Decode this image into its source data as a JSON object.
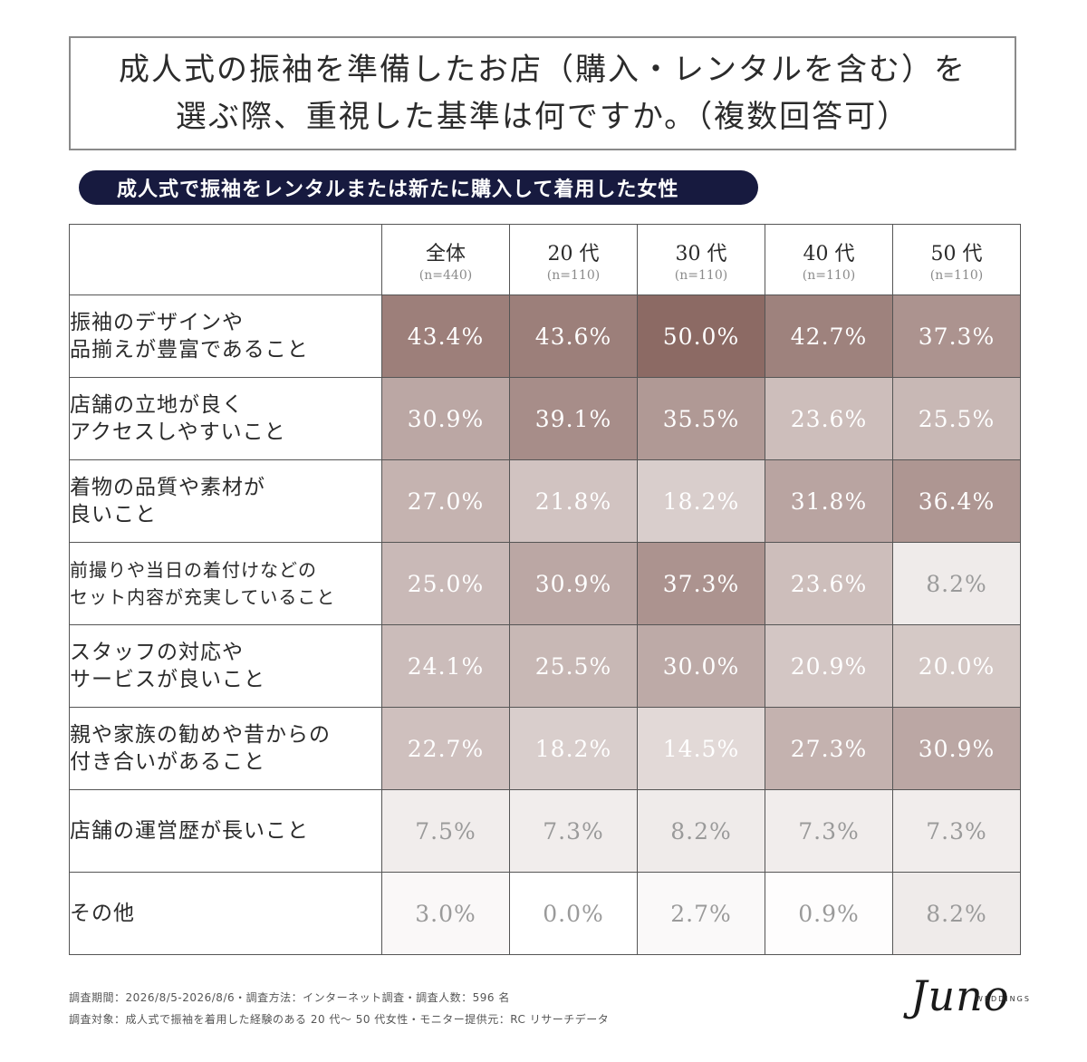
{
  "title": {
    "line1": "成人式の振袖を準備したお店（購入・レンタルを含む）を",
    "line2": "選ぶ際、重視した基準は何ですか。（複数回答可）"
  },
  "subtitle": "成人式で振袖をレンタルまたは新たに購入して着用した女性",
  "chart_data": {
    "type": "heatmap",
    "columns": [
      {
        "name": "全体",
        "n": "(n=440)"
      },
      {
        "name": "20 代",
        "n": "(n=110)"
      },
      {
        "name": "30 代",
        "n": "(n=110)"
      },
      {
        "name": "40 代",
        "n": "(n=110)"
      },
      {
        "name": "50 代",
        "n": "(n=110)"
      }
    ],
    "rows": [
      {
        "label": [
          "振袖のデザインや",
          "品揃えが豊富であること"
        ],
        "values": [
          43.4,
          43.6,
          50.0,
          42.7,
          37.3
        ],
        "labels": [
          "43.4%",
          "43.6%",
          "50.0%",
          "42.7%",
          "37.3%"
        ]
      },
      {
        "label": [
          "店舗の立地が良く",
          "アクセスしやすいこと"
        ],
        "values": [
          30.9,
          39.1,
          35.5,
          23.6,
          25.5
        ],
        "labels": [
          "30.9%",
          "39.1%",
          "35.5%",
          "23.6%",
          "25.5%"
        ]
      },
      {
        "label": [
          "着物の品質や素材が",
          "良いこと"
        ],
        "values": [
          27.0,
          21.8,
          18.2,
          31.8,
          36.4
        ],
        "labels": [
          "27.0%",
          "21.8%",
          "18.2%",
          "31.8%",
          "36.4%"
        ]
      },
      {
        "label": [
          "前撮りや当日の着付けなどの",
          "セット内容が充実していること"
        ],
        "values": [
          25.0,
          30.9,
          37.3,
          23.6,
          8.2
        ],
        "labels": [
          "25.0%",
          "30.9%",
          "37.3%",
          "23.6%",
          "8.2%"
        ],
        "small": true
      },
      {
        "label": [
          "スタッフの対応や",
          "サービスが良いこと"
        ],
        "values": [
          24.1,
          25.5,
          30.0,
          20.9,
          20.0
        ],
        "labels": [
          "24.1%",
          "25.5%",
          "30.0%",
          "20.9%",
          "20.0%"
        ]
      },
      {
        "label": [
          "親や家族の勧めや昔からの",
          "付き合いがあること"
        ],
        "values": [
          22.7,
          18.2,
          14.5,
          27.3,
          30.9
        ],
        "labels": [
          "22.7%",
          "18.2%",
          "14.5%",
          "27.3%",
          "30.9%"
        ]
      },
      {
        "label": [
          "店舗の運営歴が長いこと"
        ],
        "values": [
          7.5,
          7.3,
          8.2,
          7.3,
          7.3
        ],
        "labels": [
          "7.5%",
          "7.3%",
          "8.2%",
          "7.3%",
          "7.3%"
        ]
      },
      {
        "label": [
          "その他"
        ],
        "values": [
          3.0,
          0.0,
          2.7,
          0.9,
          8.2
        ],
        "labels": [
          "3.0%",
          "0.0%",
          "2.7%",
          "0.9%",
          "8.2%"
        ]
      }
    ],
    "color_scale": {
      "low": "#ffffff",
      "high": "#8c6a64"
    }
  },
  "footer": {
    "line1": "調査期間：2026/8/5-2026/8/6・調査方法：インターネット調査・調査人数：596 名",
    "line2": "調査対象：成人式で振袖を着用した経験のある 20 代〜 50 代女性・モニター提供元：RC リサーチデータ"
  },
  "logo": {
    "script": "Juno",
    "small": "WEDDINGS"
  }
}
